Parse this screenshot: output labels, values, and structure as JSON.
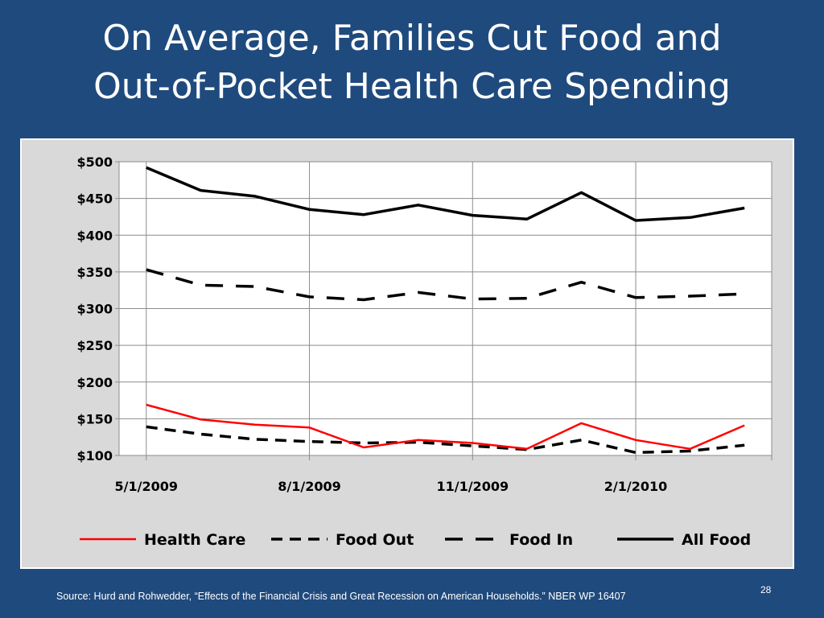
{
  "slide": {
    "title_line1": "On Average, Families Cut Food and",
    "title_line2": "Out-of-Pocket Health Care Spending",
    "source": "Source: Hurd and Rohwedder, “Effects of the Financial Crisis and Great Recession on American Households.” NBER WP 16407",
    "page_number": "28"
  },
  "chart_data": {
    "type": "line",
    "title": "",
    "xlabel": "",
    "ylabel": "",
    "ylim": [
      100,
      500
    ],
    "y_ticks": [
      100,
      150,
      200,
      250,
      300,
      350,
      400,
      450,
      500
    ],
    "y_tick_labels": [
      "$100",
      "$150",
      "$200",
      "$250",
      "$300",
      "$350",
      "$400",
      "$450",
      "$500"
    ],
    "x_tick_labels": [
      "5/1/2009",
      "8/1/2009",
      "11/1/2009",
      "2/1/2010"
    ],
    "x_tick_positions": [
      0,
      3,
      6,
      9
    ],
    "x_range": [
      -0.5,
      11.5
    ],
    "grid": true,
    "legend_position": "bottom",
    "series": [
      {
        "name": "Health Care",
        "color": "#ff0000",
        "style": "solid",
        "values": [
          169,
          149,
          142,
          138,
          111,
          121,
          117,
          109,
          144,
          121,
          109,
          141
        ]
      },
      {
        "name": "Food Out",
        "color": "#000000",
        "style": "dash-short",
        "values": [
          139,
          129,
          122,
          119,
          117,
          118,
          113,
          108,
          121,
          104,
          106,
          114
        ]
      },
      {
        "name": "Food In",
        "color": "#000000",
        "style": "dash-long",
        "values": [
          353,
          332,
          330,
          316,
          312,
          322,
          313,
          314,
          336,
          315,
          317,
          320
        ]
      },
      {
        "name": "All Food",
        "color": "#000000",
        "style": "solid",
        "values": [
          492,
          461,
          453,
          435,
          428,
          441,
          427,
          422,
          458,
          420,
          424,
          437
        ]
      }
    ]
  }
}
